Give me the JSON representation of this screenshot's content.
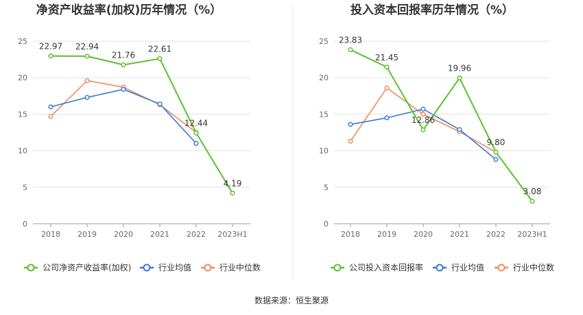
{
  "chart_data": [
    {
      "type": "line",
      "title": "净资产收益率(加权)历年情况（%）",
      "categories": [
        "2018",
        "2019",
        "2020",
        "2021",
        "2022",
        "2023H1"
      ],
      "ylim": [
        0,
        25
      ],
      "yticks": [
        0,
        5,
        10,
        15,
        20,
        25
      ],
      "series": [
        {
          "name": "公司净资产收益率(加权)",
          "color": "#5ac02c",
          "values": [
            22.97,
            22.94,
            21.76,
            22.61,
            12.44,
            4.19
          ],
          "labels": [
            "22.97",
            "22.94",
            "21.76",
            "22.61",
            "12.44",
            "4.19"
          ]
        },
        {
          "name": "行业均值",
          "color": "#3a78d8",
          "values": [
            16.0,
            17.3,
            18.4,
            16.4,
            11.0,
            null
          ]
        },
        {
          "name": "行业中位数",
          "color": "#f08a5d",
          "values": [
            14.7,
            19.6,
            18.7,
            16.3,
            12.5,
            null
          ]
        }
      ]
    },
    {
      "type": "line",
      "title": "投入资本回报率历年情况（%）",
      "categories": [
        "2018",
        "2019",
        "2020",
        "2021",
        "2022",
        "2023H1"
      ],
      "ylim": [
        0,
        25
      ],
      "yticks": [
        0,
        5,
        10,
        15,
        20,
        25
      ],
      "series": [
        {
          "name": "公司投入资本回报率",
          "color": "#5ac02c",
          "values": [
            23.83,
            21.45,
            12.86,
            19.96,
            9.8,
            3.08
          ],
          "labels": [
            "23.83",
            "21.45",
            "12.86",
            "19.96",
            "9.80",
            "3.08"
          ]
        },
        {
          "name": "行业均值",
          "color": "#3a78d8",
          "values": [
            13.6,
            14.5,
            15.7,
            12.9,
            8.8,
            null
          ]
        },
        {
          "name": "行业中位数",
          "color": "#f08a5d",
          "values": [
            11.3,
            18.6,
            15.0,
            12.6,
            9.8,
            null
          ]
        }
      ]
    }
  ],
  "footer": {
    "source": "数据来源：恒生聚源"
  }
}
